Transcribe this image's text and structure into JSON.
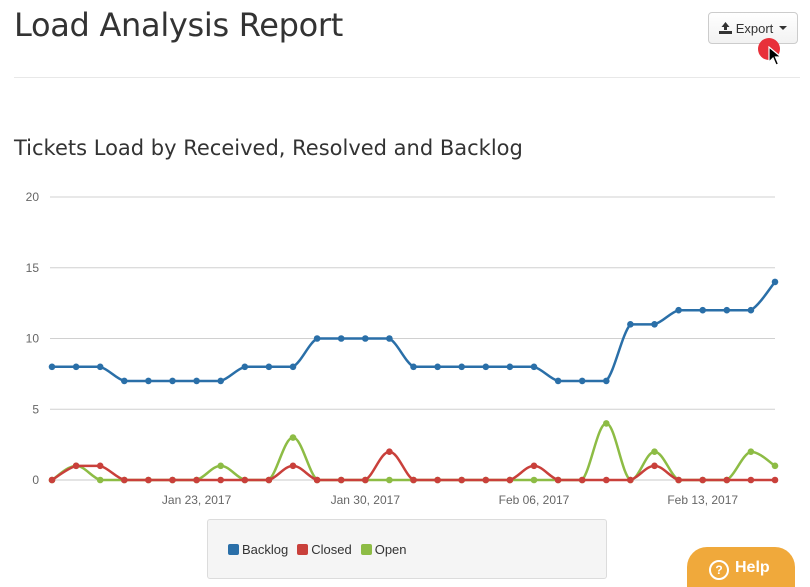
{
  "page": {
    "title": "Load Analysis Report"
  },
  "toolbar": {
    "export_label": "Export",
    "export_icon": "export-icon"
  },
  "section": {
    "title": "Tickets Load by Received, Resolved and Backlog"
  },
  "help": {
    "label": "Help",
    "icon": "question-icon"
  },
  "chart_data": {
    "type": "line",
    "title": "Tickets Load by Received, Resolved and Backlog",
    "xlabel": "",
    "ylabel": "",
    "ylim": [
      0,
      20
    ],
    "yticks": [
      0,
      5,
      10,
      15,
      20
    ],
    "grid": true,
    "legend_position": "bottom",
    "x": [
      "2017-01-17",
      "2017-01-18",
      "2017-01-19",
      "2017-01-20",
      "2017-01-21",
      "2017-01-22",
      "2017-01-23",
      "2017-01-24",
      "2017-01-25",
      "2017-01-26",
      "2017-01-27",
      "2017-01-28",
      "2017-01-29",
      "2017-01-30",
      "2017-01-31",
      "2017-02-01",
      "2017-02-02",
      "2017-02-03",
      "2017-02-04",
      "2017-02-05",
      "2017-02-06",
      "2017-02-07",
      "2017-02-08",
      "2017-02-09",
      "2017-02-10",
      "2017-02-11",
      "2017-02-12",
      "2017-02-13",
      "2017-02-14",
      "2017-02-15",
      "2017-02-16"
    ],
    "xticks": [
      {
        "date": "2017-01-23",
        "label": "Jan 23, 2017"
      },
      {
        "date": "2017-01-30",
        "label": "Jan 30, 2017"
      },
      {
        "date": "2017-02-06",
        "label": "Feb 06, 2017"
      },
      {
        "date": "2017-02-13",
        "label": "Feb 13, 2017"
      }
    ],
    "series": [
      {
        "name": "Backlog",
        "color": "#2a6fa8",
        "values": [
          8,
          8,
          8,
          7,
          7,
          7,
          7,
          7,
          8,
          8,
          8,
          10,
          10,
          10,
          10,
          8,
          8,
          8,
          8,
          8,
          8,
          7,
          7,
          7,
          11,
          11,
          12,
          12,
          12,
          12,
          14
        ]
      },
      {
        "name": "Closed",
        "color": "#c9403b",
        "values": [
          0,
          1,
          1,
          0,
          0,
          0,
          0,
          0,
          0,
          0,
          1,
          0,
          0,
          0,
          2,
          0,
          0,
          0,
          0,
          0,
          1,
          0,
          0,
          0,
          0,
          1,
          0,
          0,
          0,
          0,
          0
        ]
      },
      {
        "name": "Open",
        "color": "#8dbc45",
        "values": [
          0,
          1,
          0,
          0,
          0,
          0,
          0,
          1,
          0,
          0,
          3,
          0,
          0,
          0,
          0,
          0,
          0,
          0,
          0,
          0,
          0,
          0,
          0,
          4,
          0,
          2,
          0,
          0,
          0,
          2,
          1
        ]
      }
    ]
  }
}
